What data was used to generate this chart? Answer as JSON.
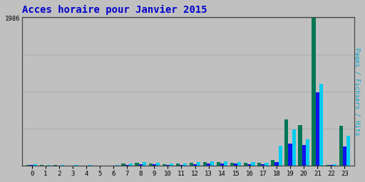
{
  "title": "Acces horaire pour Janvier 2015",
  "title_color": "#0000cc",
  "title_fontsize": 10,
  "background_color": "#c0c0c0",
  "plot_bg_color": "#c0c0c0",
  "ylabel_right": "Pages / Fichiers / Hits",
  "ylabel_right_color": "#00aacc",
  "hours": [
    0,
    1,
    2,
    3,
    4,
    5,
    6,
    7,
    8,
    9,
    10,
    11,
    12,
    13,
    14,
    15,
    16,
    17,
    18,
    19,
    20,
    21,
    22,
    23
  ],
  "pages": [
    15,
    8,
    8,
    5,
    5,
    2,
    5,
    25,
    38,
    32,
    22,
    25,
    38,
    48,
    50,
    42,
    40,
    38,
    75,
    620,
    550,
    1986,
    10,
    540
  ],
  "fichiers": [
    8,
    4,
    4,
    3,
    3,
    1,
    3,
    14,
    22,
    18,
    12,
    15,
    22,
    28,
    28,
    25,
    22,
    20,
    45,
    300,
    280,
    980,
    6,
    260
  ],
  "hits": [
    20,
    10,
    10,
    6,
    6,
    2,
    8,
    32,
    48,
    40,
    28,
    30,
    46,
    60,
    58,
    50,
    46,
    42,
    270,
    490,
    350,
    1100,
    18,
    400
  ],
  "pages_color": "#007755",
  "fichiers_color": "#1111ee",
  "hits_color": "#00ccee",
  "ylim_max": 2000,
  "grid_color": "#aaaaaa",
  "bar_width": 0.27,
  "border_color": "#444444"
}
